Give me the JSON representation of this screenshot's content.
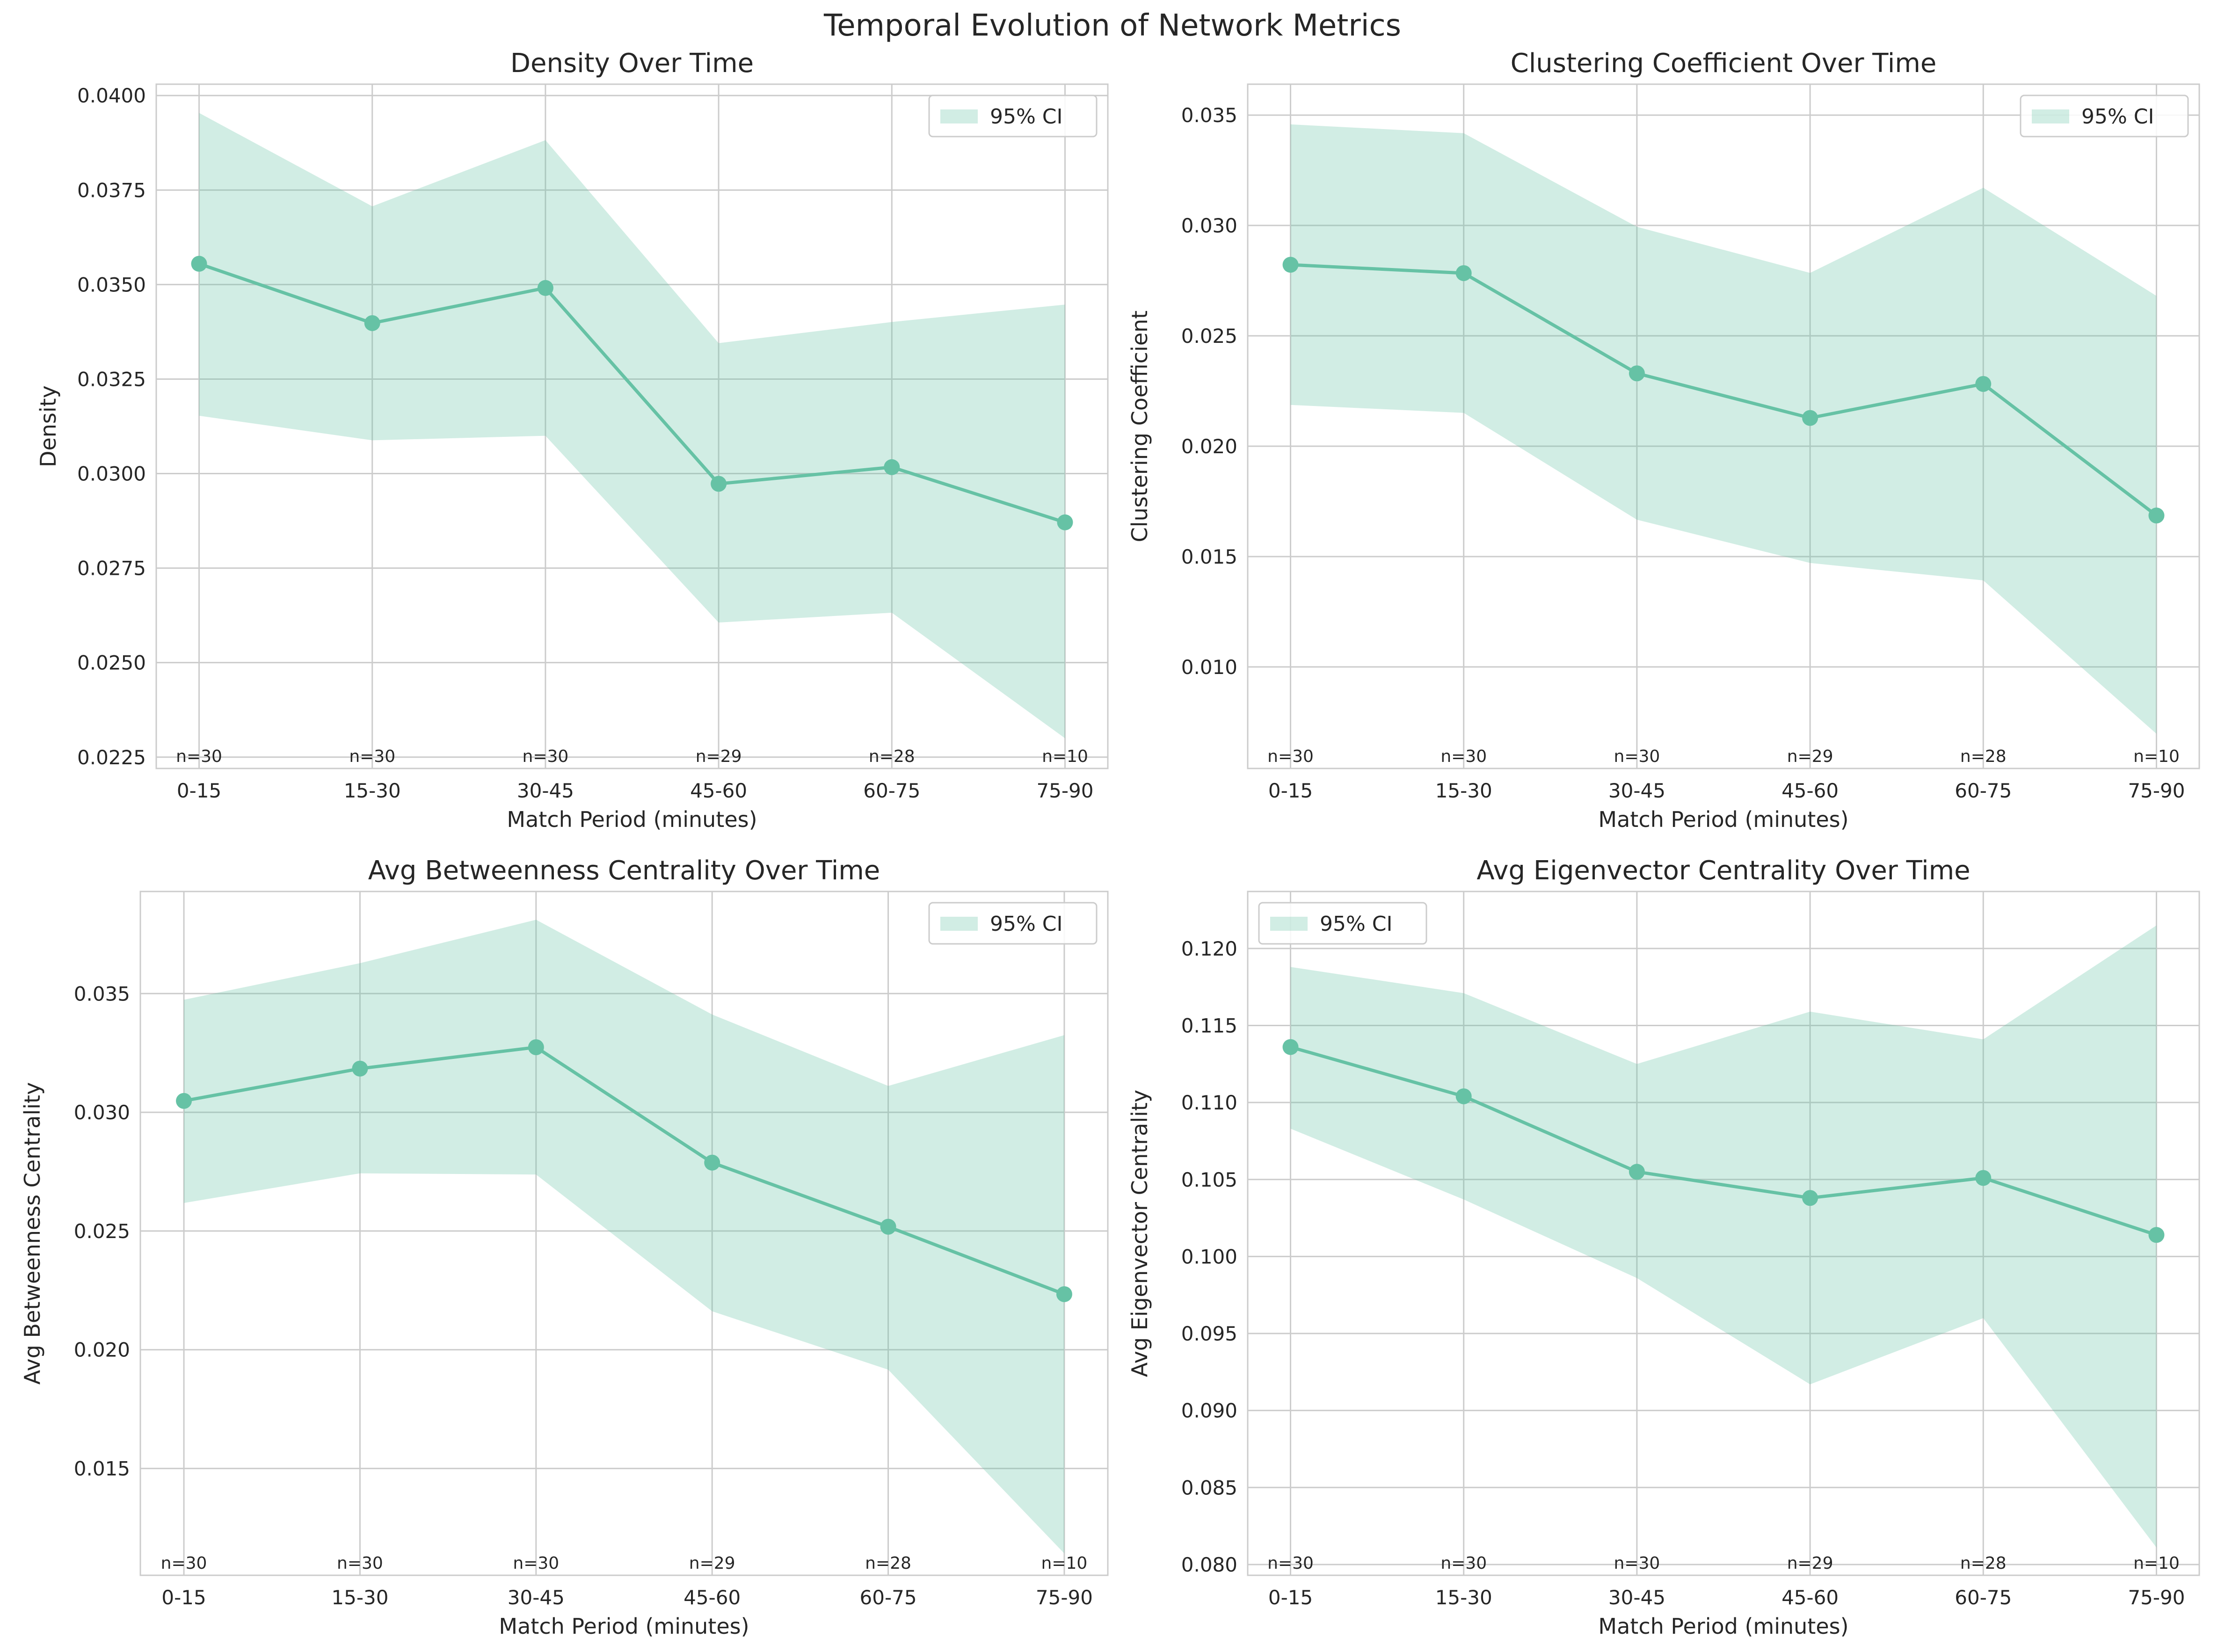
{
  "figure": {
    "title": "Temporal Evolution of Network Metrics"
  },
  "colors": {
    "line": "#66c2a5",
    "band": "#66c2a5",
    "grid": "#cccccc",
    "text": "#262626"
  },
  "chart_data": [
    {
      "type": "line",
      "title": "Density Over Time",
      "xlabel": "Match Period (minutes)",
      "ylabel": "Density",
      "categories": [
        "0-15",
        "15-30",
        "30-45",
        "45-60",
        "60-75",
        "75-90"
      ],
      "series": [
        {
          "values": [
            0.03555,
            0.03398,
            0.03491,
            0.02973,
            0.03017,
            0.02871
          ]
        }
      ],
      "ci_label": "95% CI",
      "ci_lower": [
        0.03153,
        0.03088,
        0.031,
        0.02606,
        0.02632,
        0.023
      ],
      "ci_upper": [
        0.03954,
        0.03707,
        0.03882,
        0.03345,
        0.03401,
        0.03447
      ],
      "n_labels": [
        "n=30",
        "n=30",
        "n=30",
        "n=29",
        "n=28",
        "n=10"
      ],
      "ylim": [
        0.0222,
        0.0403
      ],
      "yticks": [
        "0.0225",
        "0.0250",
        "0.0275",
        "0.0300",
        "0.0325",
        "0.0350",
        "0.0375",
        "0.0400"
      ],
      "ytick_values": [
        0.0225,
        0.025,
        0.0275,
        0.03,
        0.0325,
        0.035,
        0.0375,
        0.04
      ],
      "legend": "upper right",
      "grid": true
    },
    {
      "type": "line",
      "title": "Clustering Coefficient Over Time",
      "xlabel": "Match Period (minutes)",
      "ylabel": "Clustering Coefficient",
      "categories": [
        "0-15",
        "15-30",
        "30-45",
        "45-60",
        "60-75",
        "75-90"
      ],
      "series": [
        {
          "values": [
            0.02822,
            0.02784,
            0.0233,
            0.02128,
            0.02282,
            0.01686
          ]
        }
      ],
      "ci_label": "95% CI",
      "ci_lower": [
        0.02187,
        0.02151,
        0.01667,
        0.01471,
        0.01392,
        0.00697
      ],
      "ci_upper": [
        0.03458,
        0.03418,
        0.02994,
        0.02785,
        0.03171,
        0.02681
      ],
      "n_labels": [
        "n=30",
        "n=30",
        "n=30",
        "n=29",
        "n=28",
        "n=10"
      ],
      "ylim": [
        0.0054,
        0.0364
      ],
      "yticks": [
        "0.010",
        "0.015",
        "0.020",
        "0.025",
        "0.030",
        "0.035"
      ],
      "ytick_values": [
        0.01,
        0.015,
        0.02,
        0.025,
        0.03,
        0.035
      ],
      "legend": "upper right",
      "grid": true
    },
    {
      "type": "line",
      "title": "Avg Betweenness Centrality Over Time",
      "xlabel": "Match Period (minutes)",
      "ylabel": "Avg Betweenness Centrality",
      "categories": [
        "0-15",
        "15-30",
        "30-45",
        "45-60",
        "60-75",
        "75-90"
      ],
      "series": [
        {
          "values": [
            0.03048,
            0.03184,
            0.03274,
            0.02788,
            0.02518,
            0.02234
          ]
        }
      ],
      "ci_label": "95% CI",
      "ci_lower": [
        0.02618,
        0.02743,
        0.02738,
        0.02162,
        0.01916,
        0.01142
      ],
      "ci_upper": [
        0.03474,
        0.03628,
        0.03811,
        0.03412,
        0.03111,
        0.03325
      ],
      "n_labels": [
        "n=30",
        "n=30",
        "n=30",
        "n=29",
        "n=28",
        "n=10"
      ],
      "ylim": [
        0.0105,
        0.0393
      ],
      "yticks": [
        "0.015",
        "0.020",
        "0.025",
        "0.030",
        "0.035"
      ],
      "ytick_values": [
        0.015,
        0.02,
        0.025,
        0.03,
        0.035
      ],
      "legend": "upper right",
      "grid": true
    },
    {
      "type": "line",
      "title": "Avg Eigenvector Centrality Over Time",
      "xlabel": "Match Period (minutes)",
      "ylabel": "Avg Eigenvector Centrality",
      "categories": [
        "0-15",
        "15-30",
        "30-45",
        "45-60",
        "60-75",
        "75-90"
      ],
      "series": [
        {
          "values": [
            0.1136,
            0.1104,
            0.1055,
            0.1038,
            0.1051,
            0.1014
          ]
        }
      ],
      "ci_label": "95% CI",
      "ci_lower": [
        0.1083,
        0.1037,
        0.0986,
        0.0917,
        0.096,
        0.0811
      ],
      "ci_upper": [
        0.1188,
        0.1171,
        0.1125,
        0.1159,
        0.1141,
        0.1215
      ],
      "n_labels": [
        "n=30",
        "n=30",
        "n=30",
        "n=29",
        "n=28",
        "n=10"
      ],
      "ylim": [
        0.0793,
        0.1237
      ],
      "yticks": [
        "0.080",
        "0.085",
        "0.090",
        "0.095",
        "0.100",
        "0.105",
        "0.110",
        "0.115",
        "0.120"
      ],
      "ytick_values": [
        0.08,
        0.085,
        0.09,
        0.095,
        0.1,
        0.105,
        0.11,
        0.115,
        0.12
      ],
      "legend": "upper left",
      "grid": true
    }
  ]
}
